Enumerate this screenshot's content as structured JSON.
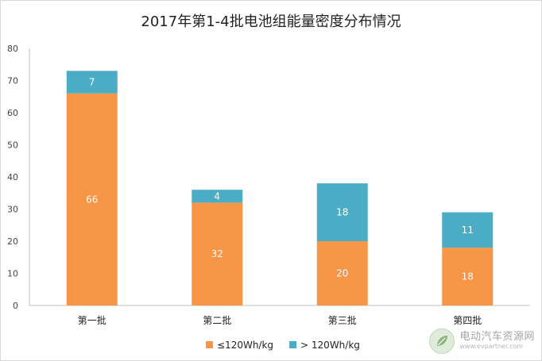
{
  "chart_data": {
    "type": "bar",
    "stacked": true,
    "title": "2017年第1-4批电池组能量密度分布情况",
    "categories": [
      "第一批",
      "第二批",
      "第三批",
      "第四批"
    ],
    "series": [
      {
        "name": "≤120Wh/kg",
        "values": [
          66,
          32,
          20,
          18
        ],
        "color": "#F79646"
      },
      {
        "name": "> 120Wh/kg",
        "values": [
          7,
          4,
          18,
          11
        ],
        "color": "#4BACC6"
      }
    ],
    "ylim": [
      0,
      80
    ],
    "yticks": [
      0,
      10,
      20,
      30,
      40,
      50,
      60,
      70,
      80
    ],
    "grid": false,
    "legend_position": "bottom"
  },
  "watermark": {
    "name": "电动汽车资源网",
    "url": "www.evpartner.com"
  }
}
